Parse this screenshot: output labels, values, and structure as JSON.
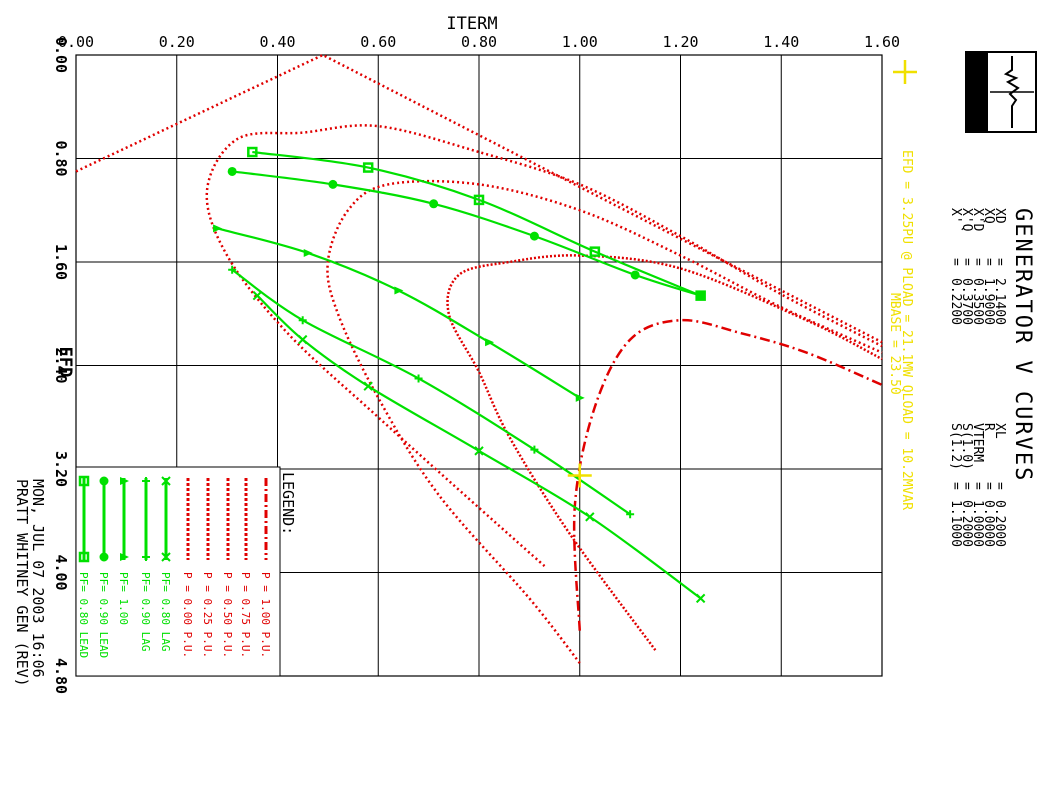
{
  "chart_data": {
    "type": "line",
    "title": "GENERATOR V CURVES",
    "xlabel": "ITERM",
    "ylabel": "EFD",
    "xlim": [
      0.0,
      1.6
    ],
    "ylim": [
      0.0,
      4.8
    ],
    "x_ticks": [
      "0.00",
      "0.20",
      "0.40",
      "0.60",
      "0.80",
      "1.00",
      "1.20",
      "1.40",
      "1.60"
    ],
    "y_ticks": [
      "0.00",
      "0.80",
      "1.60",
      "2.40",
      "3.20",
      "4.00",
      "4.80"
    ],
    "grid": true,
    "colors": {
      "lagging_load_lines": "#00e000",
      "power_curves": "#e00000",
      "info_yellow": "#f0e000"
    },
    "parameters": {
      "left": [
        {
          "name": "XD",
          "value": "2.1400"
        },
        {
          "name": "XQ",
          "value": "1.9000"
        },
        {
          "name": "X'D",
          "value": "0.3500"
        },
        {
          "name": "X'Q",
          "value": "0.3700"
        },
        {
          "name": "X'",
          "value": "0.2200"
        }
      ],
      "right": [
        {
          "name": "XL",
          "value": "0.2000"
        },
        {
          "name": "R",
          "value": "0.0000"
        },
        {
          "name": "VTERM",
          "value": "1.0000"
        },
        {
          "name": "S(1.0)",
          "value": "0.2000"
        },
        {
          "name": "S(1.2)",
          "value": "1.1000"
        }
      ]
    },
    "operating_info": [
      "EFD = 3.25PU @ PLOAD = 21.1MW QLOAD = 10.2MVAR",
      "MBASE = 23.50"
    ],
    "operating_point": {
      "x": 1.0,
      "y": 3.25
    },
    "footer": [
      "MON, JUL 07 2003  16:06",
      "PRATT WHITNEY GEN (REV)"
    ],
    "legend_title": "LEGEND:",
    "series": [
      {
        "name": "P = 1.00 P.U.",
        "style": "dashdot",
        "color": "#e00000",
        "x": [
          1.0,
          0.99,
          1.03,
          1.1,
          1.2,
          1.32,
          1.45,
          1.6
        ],
        "y": [
          4.45,
          3.5,
          2.72,
          2.2,
          2.05,
          2.15,
          2.3,
          2.55
        ]
      },
      {
        "name": "P = 0.75 P.U.",
        "style": "dense-dot",
        "color": "#e00000",
        "x": [
          1.15,
          0.98,
          0.86,
          0.8,
          0.74,
          0.76,
          0.86,
          1.0,
          1.2,
          1.45,
          1.6
        ],
        "y": [
          4.6,
          3.7,
          2.95,
          2.45,
          2.0,
          1.7,
          1.6,
          1.55,
          1.65,
          2.05,
          2.35
        ]
      },
      {
        "name": "P = 0.50 P.U.",
        "style": "dot",
        "color": "#e00000",
        "x": [
          1.0,
          0.9,
          0.72,
          0.6,
          0.52,
          0.5,
          0.54,
          0.62,
          0.8,
          1.0,
          1.2,
          1.4,
          1.6
        ],
        "y": [
          4.7,
          4.2,
          3.4,
          2.65,
          2.0,
          1.6,
          1.2,
          1.0,
          1.0,
          1.2,
          1.55,
          1.95,
          2.3
        ]
      },
      {
        "name": "P = 0.25 P.U.",
        "style": "dot",
        "color": "#e00000",
        "x": [
          0.93,
          0.8,
          0.6,
          0.42,
          0.3,
          0.26,
          0.32,
          0.45,
          0.6,
          0.8,
          1.0,
          1.2,
          1.4,
          1.6
        ],
        "y": [
          3.95,
          3.5,
          2.8,
          2.15,
          1.55,
          1.05,
          0.65,
          0.6,
          0.55,
          0.75,
          1.0,
          1.4,
          1.85,
          2.25
        ]
      },
      {
        "name": "P = 0.00 P.U.",
        "style": "dot",
        "color": "#e00000",
        "x": [
          0.0,
          0.49,
          1.6
        ],
        "y": [
          0.9,
          0.0,
          2.22
        ]
      },
      {
        "name": "PF= 0.80 LAG",
        "marker": "x",
        "color": "#00e000",
        "x": [
          0.36,
          0.45,
          0.58,
          0.8,
          1.02,
          1.24
        ],
        "y": [
          1.86,
          2.2,
          2.56,
          3.06,
          3.57,
          4.2
        ]
      },
      {
        "name": "PF= 0.90 LAG",
        "marker": "+",
        "color": "#00e000",
        "x": [
          0.31,
          0.45,
          0.68,
          0.91,
          1.1
        ],
        "y": [
          1.66,
          2.05,
          2.5,
          3.05,
          3.55
        ]
      },
      {
        "name": "PF= 1.00",
        "marker": "triangle",
        "color": "#00e000",
        "x": [
          0.28,
          0.46,
          0.64,
          0.82,
          1.0
        ],
        "y": [
          1.34,
          1.53,
          1.82,
          2.22,
          2.65
        ]
      },
      {
        "name": "PF= 0.90 LEAD",
        "marker": "circle",
        "color": "#00e000",
        "x": [
          0.31,
          0.51,
          0.71,
          0.91,
          1.11,
          1.24
        ],
        "y": [
          0.9,
          1.0,
          1.15,
          1.4,
          1.7,
          1.86
        ]
      },
      {
        "name": "PF= 0.80 LEAD",
        "marker": "square",
        "color": "#00e000",
        "x": [
          0.35,
          0.58,
          0.8,
          1.03,
          1.24
        ],
        "y": [
          0.75,
          0.87,
          1.12,
          1.52,
          1.86
        ]
      }
    ]
  }
}
